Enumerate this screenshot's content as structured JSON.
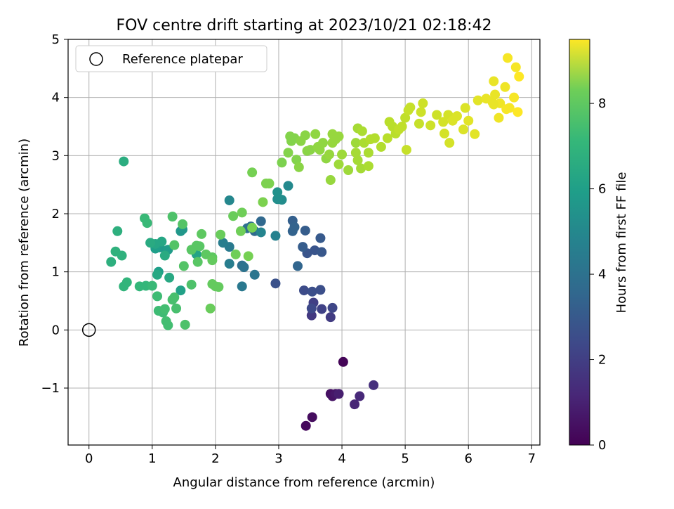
{
  "chart_data": {
    "type": "scatter",
    "title": "FOV centre drift starting at 2023/10/21 02:18:42",
    "xlabel": "Angular distance from reference (arcmin)",
    "ylabel": "Rotation from reference (arcmin)",
    "xlim": [
      -0.33,
      7.13
    ],
    "ylim": [
      -1.98,
      5.0
    ],
    "xticks": [
      0,
      1,
      2,
      3,
      4,
      5,
      6,
      7
    ],
    "yticks": [
      -1,
      0,
      1,
      2,
      3,
      4,
      5
    ],
    "grid": true,
    "legend": {
      "placement": "top-left",
      "entries": [
        "Reference platepar"
      ]
    },
    "reference_point": {
      "x": 0,
      "y": 0
    },
    "colorbar": {
      "label": "Hours from first FF file",
      "colormap": "viridis",
      "range": [
        0,
        9.5
      ],
      "ticks": [
        0,
        2,
        4,
        6,
        8
      ]
    },
    "points": [
      [
        4.02,
        -0.55,
        0.1
      ],
      [
        3.43,
        -1.65,
        0.2
      ],
      [
        3.53,
        -1.5,
        0.3
      ],
      [
        3.82,
        -1.1,
        0.4
      ],
      [
        3.85,
        -1.14,
        0.5
      ],
      [
        3.9,
        -1.1,
        0.6
      ],
      [
        3.95,
        -1.1,
        0.8
      ],
      [
        4.2,
        -1.28,
        1.0
      ],
      [
        4.28,
        -1.14,
        1.1
      ],
      [
        4.5,
        -0.95,
        1.3
      ],
      [
        3.52,
        0.25,
        1.6
      ],
      [
        3.82,
        0.22,
        1.7
      ],
      [
        3.55,
        0.47,
        1.8
      ],
      [
        3.68,
        0.36,
        1.9
      ],
      [
        3.85,
        0.38,
        2.0
      ],
      [
        3.52,
        0.37,
        2.1
      ],
      [
        3.4,
        0.68,
        2.2
      ],
      [
        3.53,
        0.66,
        2.3
      ],
      [
        3.66,
        0.69,
        2.3
      ],
      [
        2.95,
        0.8,
        2.4
      ],
      [
        3.45,
        1.32,
        2.5
      ],
      [
        3.57,
        1.37,
        2.5
      ],
      [
        3.68,
        1.34,
        2.6
      ],
      [
        3.66,
        1.58,
        2.7
      ],
      [
        3.38,
        1.43,
        2.8
      ],
      [
        3.42,
        1.71,
        2.8
      ],
      [
        3.22,
        1.88,
        2.9
      ],
      [
        3.22,
        1.7,
        3.0
      ],
      [
        3.25,
        1.77,
        3.0
      ],
      [
        3.3,
        1.1,
        3.1
      ],
      [
        2.72,
        1.87,
        3.2
      ],
      [
        2.62,
        1.7,
        3.3
      ],
      [
        2.56,
        1.78,
        3.4
      ],
      [
        2.5,
        1.75,
        3.5
      ],
      [
        2.42,
        1.11,
        3.5
      ],
      [
        2.45,
        1.08,
        3.6
      ],
      [
        2.62,
        0.95,
        3.7
      ],
      [
        2.42,
        0.75,
        3.8
      ],
      [
        2.22,
        1.43,
        3.9
      ],
      [
        2.22,
        1.14,
        4.0
      ],
      [
        2.12,
        1.5,
        4.0
      ],
      [
        2.95,
        1.62,
        4.2
      ],
      [
        2.72,
        1.68,
        4.3
      ],
      [
        2.22,
        2.23,
        4.4
      ],
      [
        3.15,
        2.48,
        4.5
      ],
      [
        3.05,
        2.24,
        4.6
      ],
      [
        2.98,
        2.25,
        4.7
      ],
      [
        2.98,
        2.37,
        4.8
      ],
      [
        1.45,
        1.7,
        5.0
      ],
      [
        1.48,
        1.73,
        5.0
      ],
      [
        1.12,
        1.42,
        5.1
      ],
      [
        1.25,
        1.38,
        5.2
      ],
      [
        1.05,
        1.4,
        5.3
      ],
      [
        1.1,
        1.0,
        5.3
      ],
      [
        1.45,
        0.68,
        5.4
      ],
      [
        1.7,
        1.3,
        5.5
      ],
      [
        1.15,
        1.52,
        5.6
      ],
      [
        1.05,
        1.48,
        5.6
      ],
      [
        1.27,
        0.9,
        5.7
      ],
      [
        1.08,
        0.95,
        5.7
      ],
      [
        0.97,
        1.5,
        5.8
      ],
      [
        1.2,
        1.28,
        5.8
      ],
      [
        0.55,
        2.9,
        5.9
      ],
      [
        0.45,
        1.7,
        6.0
      ],
      [
        0.35,
        1.17,
        6.0
      ],
      [
        0.42,
        1.35,
        6.1
      ],
      [
        0.52,
        1.28,
        6.1
      ],
      [
        0.55,
        0.75,
        6.2
      ],
      [
        0.6,
        0.82,
        6.2
      ],
      [
        0.8,
        0.75,
        6.3
      ],
      [
        0.9,
        0.76,
        6.3
      ],
      [
        1.0,
        0.76,
        6.4
      ],
      [
        0.88,
        1.92,
        6.4
      ],
      [
        0.92,
        1.84,
        6.4
      ],
      [
        1.08,
        0.58,
        6.5
      ],
      [
        1.1,
        0.33,
        6.5
      ],
      [
        1.17,
        0.3,
        6.5
      ],
      [
        1.2,
        0.36,
        6.6
      ],
      [
        1.22,
        0.15,
        6.6
      ],
      [
        1.25,
        0.08,
        6.6
      ],
      [
        1.32,
        0.52,
        6.7
      ],
      [
        1.35,
        0.56,
        6.7
      ],
      [
        1.38,
        0.37,
        6.7
      ],
      [
        1.52,
        0.09,
        6.8
      ],
      [
        1.62,
        0.78,
        6.8
      ],
      [
        1.32,
        1.95,
        6.8
      ],
      [
        1.48,
        1.82,
        6.9
      ],
      [
        1.35,
        1.46,
        6.9
      ],
      [
        1.5,
        1.1,
        6.9
      ],
      [
        1.62,
        1.38,
        7.0
      ],
      [
        1.7,
        1.45,
        7.0
      ],
      [
        1.72,
        1.17,
        7.0
      ],
      [
        1.75,
        1.44,
        7.0
      ],
      [
        1.78,
        1.65,
        7.1
      ],
      [
        1.85,
        1.3,
        7.1
      ],
      [
        1.95,
        1.25,
        7.1
      ],
      [
        1.95,
        1.2,
        7.2
      ],
      [
        1.95,
        0.79,
        7.2
      ],
      [
        2.0,
        0.75,
        7.2
      ],
      [
        2.05,
        0.74,
        7.2
      ],
      [
        1.92,
        0.37,
        7.3
      ],
      [
        2.08,
        1.64,
        7.3
      ],
      [
        2.28,
        1.96,
        7.3
      ],
      [
        2.32,
        1.3,
        7.4
      ],
      [
        2.4,
        1.7,
        7.4
      ],
      [
        2.42,
        2.02,
        7.4
      ],
      [
        2.52,
        1.27,
        7.5
      ],
      [
        2.58,
        2.71,
        7.5
      ],
      [
        2.58,
        1.76,
        7.5
      ],
      [
        2.75,
        2.2,
        7.6
      ],
      [
        2.8,
        2.52,
        7.6
      ],
      [
        2.85,
        2.52,
        7.6
      ],
      [
        3.05,
        2.88,
        7.6
      ],
      [
        3.15,
        3.05,
        7.7
      ],
      [
        3.18,
        3.33,
        7.7
      ],
      [
        3.2,
        3.25,
        7.7
      ],
      [
        3.25,
        3.3,
        7.7
      ],
      [
        3.28,
        2.93,
        7.7
      ],
      [
        3.32,
        2.8,
        7.8
      ],
      [
        3.35,
        3.25,
        7.8
      ],
      [
        3.42,
        3.35,
        7.8
      ],
      [
        3.45,
        3.08,
        7.8
      ],
      [
        3.5,
        3.1,
        7.8
      ],
      [
        3.58,
        3.37,
        7.9
      ],
      [
        3.62,
        3.15,
        7.9
      ],
      [
        3.65,
        3.1,
        7.9
      ],
      [
        3.7,
        3.22,
        7.9
      ],
      [
        3.75,
        2.95,
        7.9
      ],
      [
        3.8,
        3.02,
        8.0
      ],
      [
        3.82,
        2.58,
        8.0
      ],
      [
        3.85,
        3.22,
        8.0
      ],
      [
        3.85,
        3.37,
        8.0
      ],
      [
        3.9,
        3.28,
        8.0
      ],
      [
        3.95,
        3.33,
        8.0
      ],
      [
        3.95,
        2.85,
        8.1
      ],
      [
        4.0,
        3.02,
        8.1
      ],
      [
        4.1,
        2.75,
        8.1
      ],
      [
        4.22,
        3.22,
        8.1
      ],
      [
        4.22,
        3.05,
        8.2
      ],
      [
        4.25,
        3.47,
        8.2
      ],
      [
        4.25,
        2.92,
        8.2
      ],
      [
        4.3,
        2.78,
        8.2
      ],
      [
        4.32,
        3.42,
        8.3
      ],
      [
        4.35,
        3.22,
        8.3
      ],
      [
        4.42,
        3.05,
        8.3
      ],
      [
        4.42,
        2.82,
        8.3
      ],
      [
        4.45,
        3.28,
        8.4
      ],
      [
        4.52,
        3.3,
        8.4
      ],
      [
        4.62,
        3.15,
        8.4
      ],
      [
        4.72,
        3.3,
        8.5
      ],
      [
        4.75,
        3.58,
        8.5
      ],
      [
        4.8,
        3.5,
        8.5
      ],
      [
        4.85,
        3.38,
        8.5
      ],
      [
        4.9,
        3.45,
        8.6
      ],
      [
        4.95,
        3.5,
        8.6
      ],
      [
        5.0,
        3.65,
        8.6
      ],
      [
        5.02,
        3.1,
        8.7
      ],
      [
        5.05,
        3.78,
        8.7
      ],
      [
        5.08,
        3.83,
        8.7
      ],
      [
        5.22,
        3.55,
        8.7
      ],
      [
        5.25,
        3.75,
        8.8
      ],
      [
        5.28,
        3.9,
        8.8
      ],
      [
        5.4,
        3.52,
        8.8
      ],
      [
        5.5,
        3.7,
        8.8
      ],
      [
        5.6,
        3.58,
        8.9
      ],
      [
        5.62,
        3.38,
        8.9
      ],
      [
        5.68,
        3.7,
        8.9
      ],
      [
        5.7,
        3.22,
        8.9
      ],
      [
        5.75,
        3.6,
        9.0
      ],
      [
        5.82,
        3.68,
        9.0
      ],
      [
        5.92,
        3.45,
        9.0
      ],
      [
        5.95,
        3.82,
        9.0
      ],
      [
        6.0,
        3.6,
        9.1
      ],
      [
        6.1,
        3.37,
        9.1
      ],
      [
        6.15,
        3.95,
        9.1
      ],
      [
        6.28,
        3.98,
        9.2
      ],
      [
        6.38,
        3.92,
        9.2
      ],
      [
        6.4,
        4.28,
        9.2
      ],
      [
        6.42,
        4.05,
        9.2
      ],
      [
        6.48,
        3.65,
        9.3
      ],
      [
        6.5,
        3.9,
        9.3
      ],
      [
        6.58,
        4.18,
        9.3
      ],
      [
        6.6,
        3.8,
        9.4
      ],
      [
        6.62,
        4.68,
        9.4
      ],
      [
        6.65,
        3.82,
        9.4
      ],
      [
        6.72,
        4.0,
        9.4
      ],
      [
        6.75,
        4.52,
        9.4
      ],
      [
        6.78,
        3.75,
        9.5
      ],
      [
        6.8,
        4.36,
        9.5
      ],
      [
        6.4,
        3.88,
        9.2
      ]
    ]
  }
}
